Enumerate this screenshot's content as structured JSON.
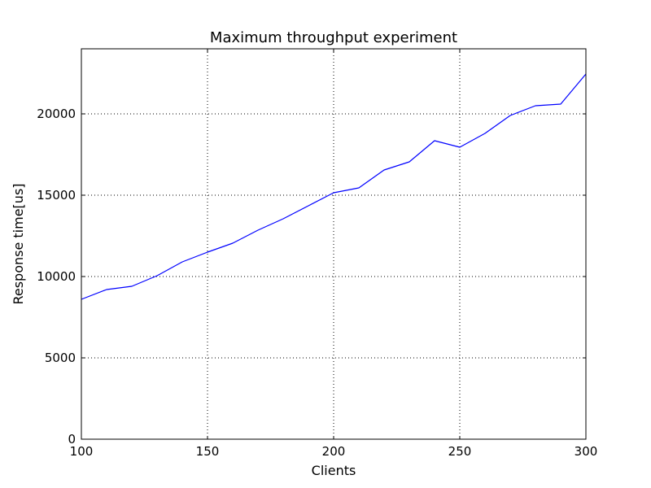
{
  "chart_data": {
    "type": "line",
    "title": "Maximum throughput experiment",
    "xlabel": "Clients",
    "ylabel": "Response time[us]",
    "xlim": [
      100,
      300
    ],
    "ylim": [
      0,
      24000
    ],
    "x_ticks": [
      100,
      150,
      200,
      250,
      300
    ],
    "y_ticks": [
      0,
      5000,
      10000,
      15000,
      20000
    ],
    "grid": true,
    "legend": "none",
    "series": [
      {
        "color": "#0000ff",
        "x": [
          100,
          110,
          120,
          130,
          140,
          150,
          160,
          170,
          180,
          190,
          200,
          210,
          220,
          230,
          240,
          250,
          260,
          270,
          280,
          290,
          300
        ],
        "y": [
          8600,
          9200,
          9400,
          10050,
          10900,
          11500,
          12050,
          12850,
          13550,
          14350,
          15150,
          15450,
          16550,
          17050,
          18350,
          17950,
          18800,
          19900,
          20500,
          20600,
          22450
        ]
      }
    ]
  }
}
